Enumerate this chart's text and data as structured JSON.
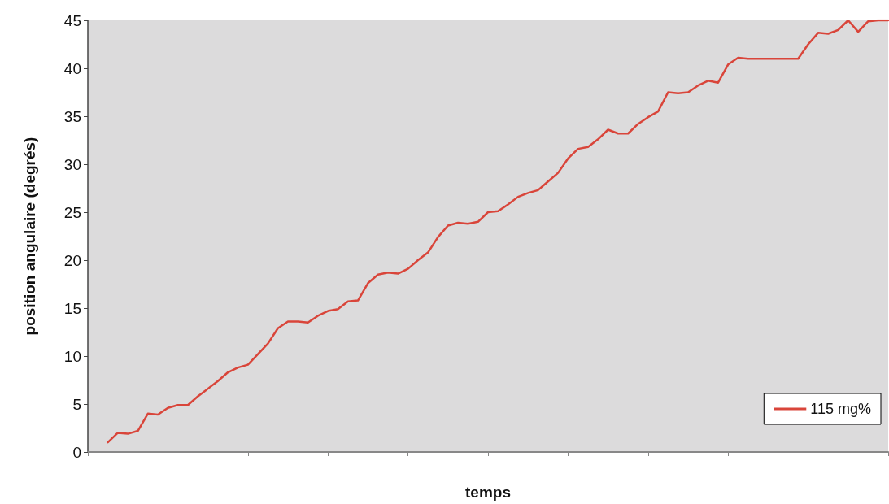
{
  "chart_data": {
    "type": "line",
    "xlabel": "temps",
    "ylabel": "position angulaire (degrés)",
    "categories": [
      null,
      null,
      null,
      null,
      null,
      null,
      null,
      null,
      null,
      null,
      null,
      null,
      null,
      null,
      null,
      null,
      null,
      null,
      null,
      null,
      null,
      null,
      null,
      null,
      null,
      null,
      null,
      null,
      null,
      null,
      null,
      null,
      null,
      null,
      null,
      null,
      null,
      null,
      null,
      null,
      null,
      null,
      null,
      null,
      null,
      null,
      null,
      null,
      null,
      null,
      null,
      null,
      null,
      null,
      null,
      null,
      null,
      null,
      null,
      null,
      null,
      null,
      null,
      null,
      null,
      null,
      null,
      null,
      null,
      null,
      null,
      null,
      null,
      null,
      null,
      null,
      null,
      null,
      null,
      null,
      null
    ],
    "series": [
      {
        "name": "115 mg%",
        "color": "#d9453a",
        "values": [
          null,
          null,
          1.0,
          2.0,
          1.9,
          2.2,
          4.0,
          3.9,
          4.6,
          4.9,
          4.9,
          5.8,
          6.6,
          7.4,
          8.3,
          8.8,
          9.1,
          10.2,
          11.3,
          12.9,
          13.6,
          13.6,
          13.5,
          14.2,
          14.7,
          14.9,
          15.7,
          15.8,
          17.6,
          18.5,
          18.7,
          18.6,
          19.1,
          20.0,
          20.8,
          22.4,
          23.6,
          23.9,
          23.8,
          24.0,
          25.0,
          25.1,
          25.8,
          26.6,
          27.0,
          27.3,
          28.2,
          29.1,
          30.6,
          31.6,
          31.8,
          32.6,
          33.6,
          33.2,
          33.2,
          34.2,
          34.9,
          35.5,
          37.5,
          37.4,
          37.5,
          38.2,
          38.7,
          38.5,
          40.4,
          41.1,
          41.0,
          41.0,
          41.0,
          41.0,
          41.0,
          41.0,
          42.5,
          43.7,
          43.6,
          44.0,
          45.0,
          43.8,
          44.9,
          45.0,
          45.0
        ]
      }
    ],
    "ylim": [
      0,
      45
    ],
    "yticks": [
      0,
      5,
      10,
      15,
      20,
      25,
      30,
      35,
      40,
      45
    ],
    "grid": false,
    "legend": "bottom right",
    "marker": "none",
    "line_style": "solid",
    "tick_labels": "y"
  }
}
